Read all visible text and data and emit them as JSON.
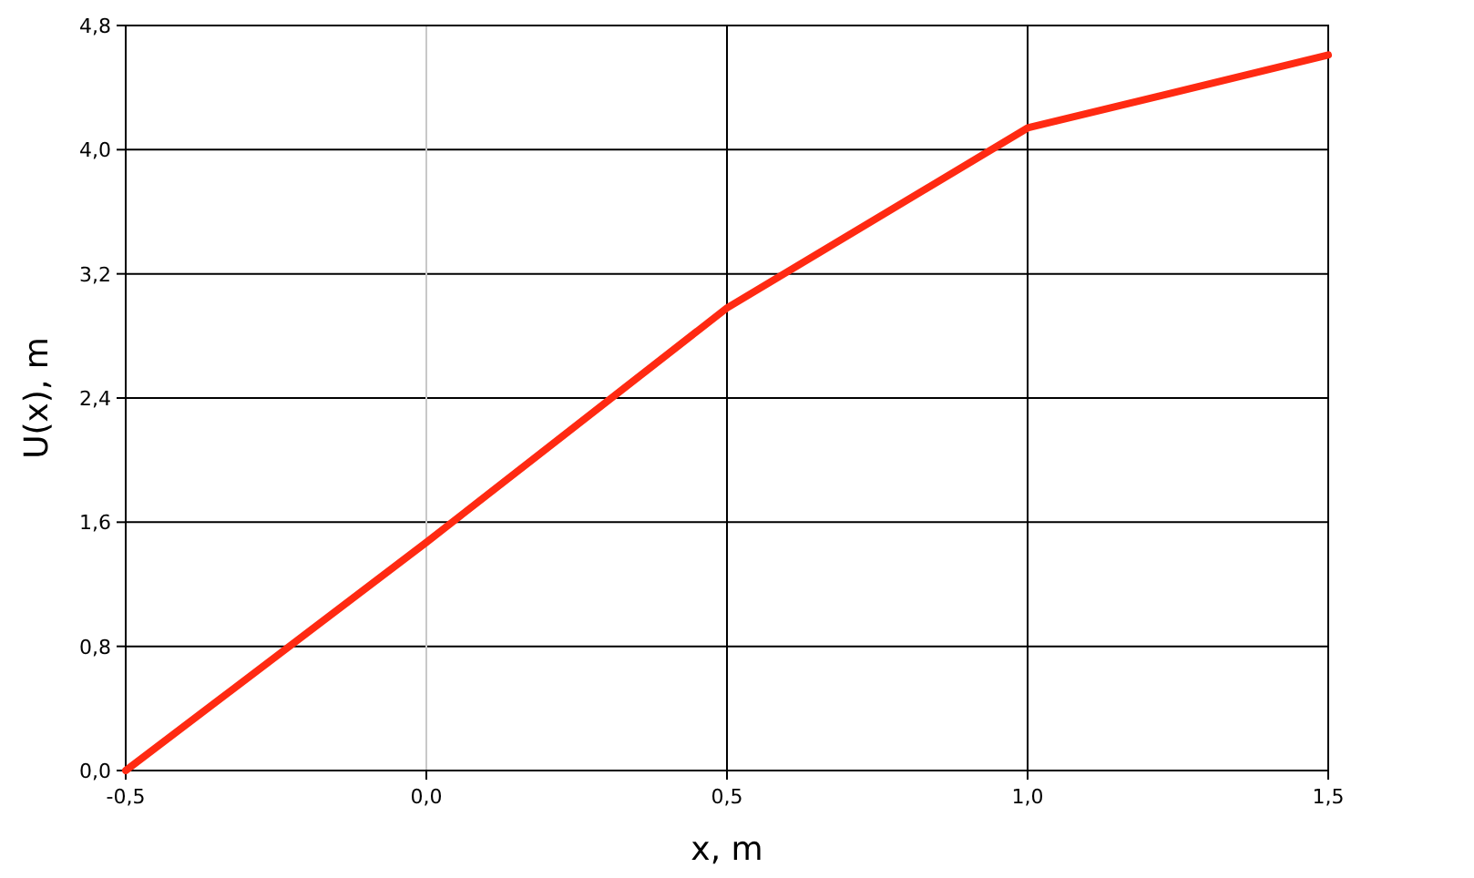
{
  "chart_data": {
    "type": "line",
    "xlabel": "x, m",
    "ylabel": "U(x), m",
    "x": [
      -0.5,
      0,
      0.5,
      1,
      1.5
    ],
    "series": [
      {
        "color": "#ff2a12",
        "values": [
          0,
          1.47,
          2.98,
          4.14,
          4.61
        ]
      }
    ],
    "xlim": [
      -0.5,
      1.5
    ],
    "ylim": [
      0,
      4.8
    ],
    "xticks": [
      {
        "value": -0.5,
        "label": "-0,5"
      },
      {
        "value": 0,
        "label": "0,0"
      },
      {
        "value": 0.5,
        "label": "0,5"
      },
      {
        "value": 1,
        "label": "1,0"
      },
      {
        "value": 1.5,
        "label": "1,5"
      }
    ],
    "yticks": [
      {
        "value": 0,
        "label": "0,0"
      },
      {
        "value": 0.8,
        "label": "0,8"
      },
      {
        "value": 1.6,
        "label": "1,6"
      },
      {
        "value": 2.4,
        "label": "2,4"
      },
      {
        "value": 3.2,
        "label": "3,2"
      },
      {
        "value": 4,
        "label": "4,0"
      },
      {
        "value": 4.8,
        "label": "4,8"
      }
    ],
    "grid": true,
    "marker": "none",
    "line_style": "solid",
    "ref_lines": [
      {
        "axis": "x",
        "value": 0,
        "color": "#c8c8c8"
      }
    ]
  }
}
